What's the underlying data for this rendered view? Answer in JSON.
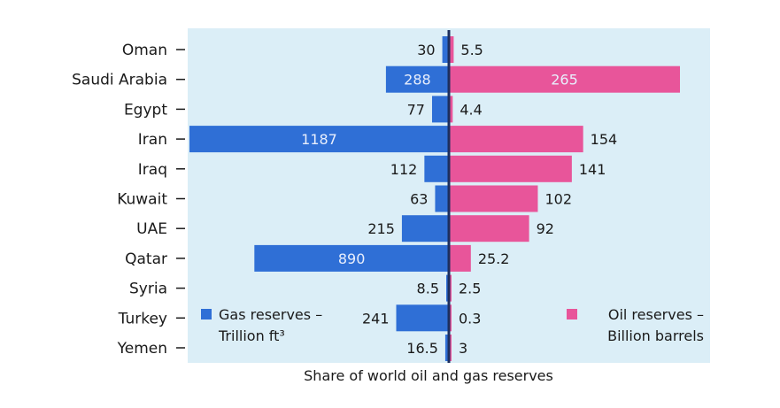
{
  "chart_data": {
    "type": "bar",
    "title": "Share of world oil and gas reserves",
    "categories": [
      "Oman",
      "Saudi Arabia",
      "Egypt",
      "Iran",
      "Iraq",
      "Kuwait",
      "UAE",
      "Qatar",
      "Syria",
      "Turkey",
      "Yemen"
    ],
    "series": [
      {
        "name": "Gas reserves – Trillion ft³",
        "legend_lines": [
          "Gas reserves –",
          "Trillion ft³"
        ],
        "values": [
          30,
          288,
          77,
          1187,
          112,
          63,
          215,
          890,
          8.5,
          241,
          16.5
        ],
        "labels": [
          "30",
          "288",
          "77",
          "1187",
          "112",
          "63",
          "215",
          "890",
          "8.5",
          "241",
          "16.5"
        ],
        "color": "#2f6fd6"
      },
      {
        "name": "Oil reserves – Billion barrels",
        "legend_lines": [
          "Oil reserves –",
          "Billion barrels"
        ],
        "values": [
          5.5,
          265,
          4.4,
          154,
          141,
          102,
          92,
          25.2,
          2.5,
          0.3,
          3
        ],
        "labels": [
          "5.5",
          "265",
          "4.4",
          "154",
          "141",
          "102",
          "92",
          "25.2",
          "2.5",
          "0.3",
          "3"
        ],
        "color": "#e8559a"
      }
    ],
    "layout": "back-to-back horizontal bars; gas to the left of a central divider, oil to the right",
    "legend": "bottom-left (gas), bottom-right (oil)",
    "grid": false,
    "colors": {
      "panel": "#dbeef7",
      "divider": "#1c2f5e"
    }
  }
}
